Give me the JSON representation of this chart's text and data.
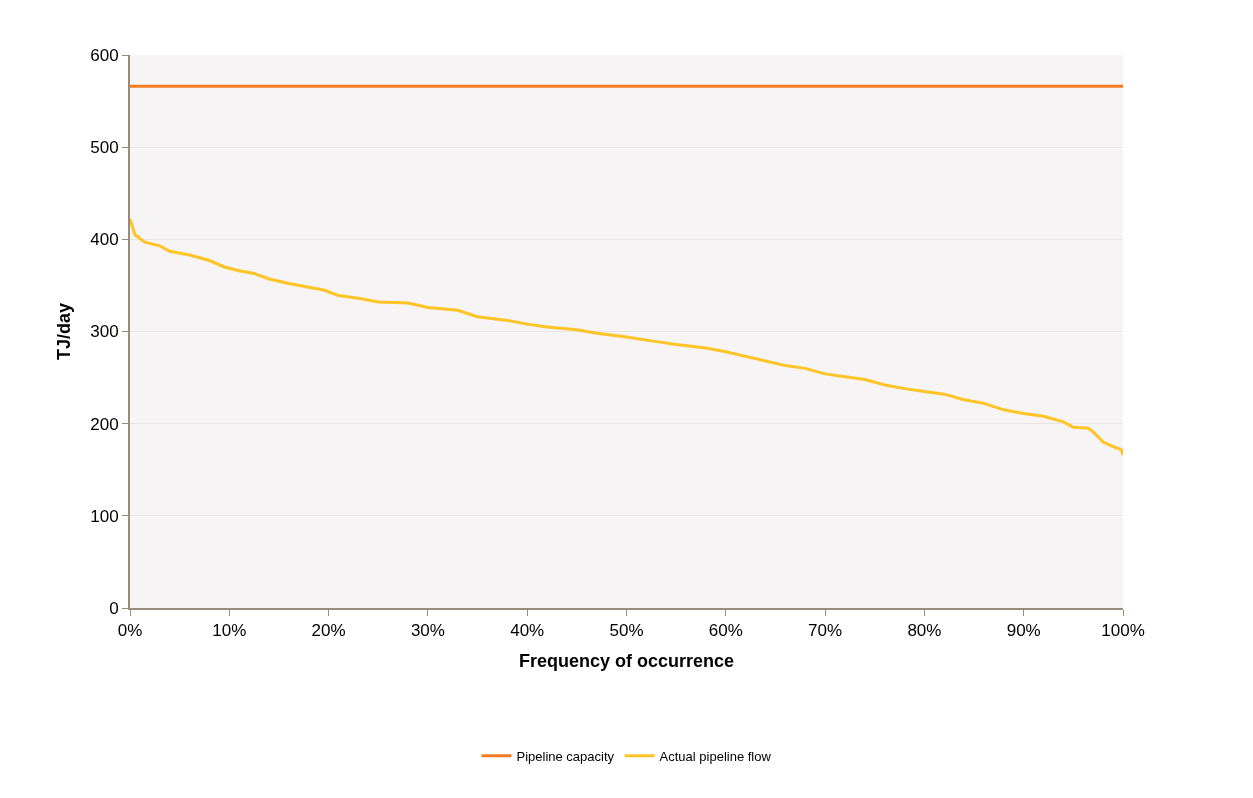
{
  "chart_data": {
    "type": "line",
    "xlabel": "Frequency of occurrence",
    "ylabel": "TJ/day",
    "xlim": [
      0,
      100
    ],
    "xticks": [
      {
        "value": 0,
        "label": "0%"
      },
      {
        "value": 10,
        "label": "10%"
      },
      {
        "value": 20,
        "label": "20%"
      },
      {
        "value": 30,
        "label": "30%"
      },
      {
        "value": 40,
        "label": "40%"
      },
      {
        "value": 50,
        "label": "50%"
      },
      {
        "value": 60,
        "label": "60%"
      },
      {
        "value": 70,
        "label": "70%"
      },
      {
        "value": 80,
        "label": "80%"
      },
      {
        "value": 90,
        "label": "90%"
      },
      {
        "value": 100,
        "label": "100%"
      }
    ],
    "ylim": [
      0,
      600
    ],
    "yticks": [
      0,
      100,
      200,
      300,
      400,
      500,
      600
    ],
    "grid": "y",
    "legend": "bottom",
    "marker": "none",
    "line_style": "solid",
    "series": [
      {
        "name": "Pipeline capacity",
        "color": "#f47b20",
        "x": [
          0,
          100
        ],
        "values": [
          566,
          566
        ]
      },
      {
        "name": "Actual pipeline flow",
        "color": "#ffc425",
        "x": [
          0,
          0.5,
          1.5,
          3,
          4,
          6,
          8,
          9.5,
          11,
          12.5,
          14,
          16,
          18,
          19.5,
          21,
          23,
          25,
          28,
          30,
          33,
          35,
          38,
          40,
          42,
          45,
          47,
          50,
          53,
          55,
          58,
          60,
          62,
          64,
          66,
          68,
          70,
          72,
          74,
          76,
          78,
          80,
          82,
          84,
          86,
          88,
          90,
          92,
          94,
          95,
          96.5,
          97,
          98,
          99,
          99.8,
          100
        ],
        "values": [
          422,
          405,
          397,
          393,
          387,
          383,
          377,
          370,
          366,
          363,
          357,
          352,
          348,
          345,
          339,
          336,
          332,
          331,
          326,
          323,
          316,
          312,
          308,
          305,
          302,
          298,
          294,
          289,
          286,
          282,
          278,
          273,
          268,
          263,
          260,
          254,
          251,
          248,
          242,
          238,
          235,
          232,
          226,
          222,
          215,
          211,
          208,
          202,
          196,
          195,
          191,
          180,
          175,
          172,
          166
        ]
      }
    ]
  }
}
